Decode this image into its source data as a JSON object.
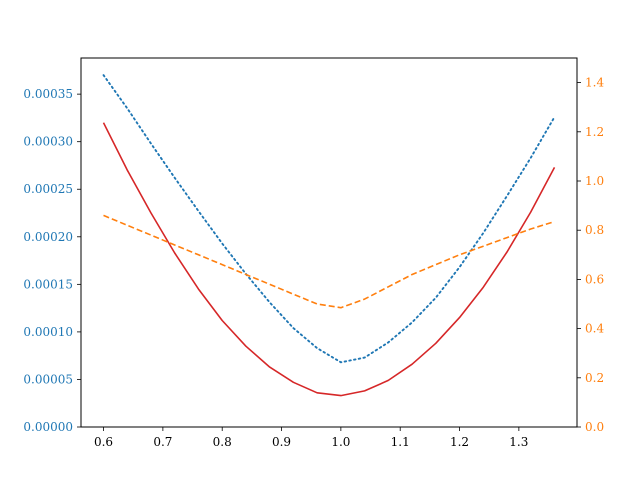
{
  "chart_data": {
    "type": "line",
    "title": "",
    "xlabel": "",
    "ylabel": "",
    "ylabel_right": "",
    "grid": false,
    "xlim": [
      0.562,
      1.398
    ],
    "ylim": [
      0,
      0.000388
    ],
    "ylim_right": [
      0,
      1.5
    ],
    "x_ticks": [
      0.6,
      0.7,
      0.8,
      0.9,
      1.0,
      1.1,
      1.2,
      1.3
    ],
    "x_tick_labels": [
      "0.6",
      "0.7",
      "0.8",
      "0.9",
      "1.0",
      "1.1",
      "1.2",
      "1.3"
    ],
    "y_ticks": [
      0,
      5e-05,
      0.0001,
      0.00015,
      0.0002,
      0.00025,
      0.0003,
      0.00035
    ],
    "y_tick_labels": [
      "0.00000",
      "0.00005",
      "0.00010",
      "0.00015",
      "0.00020",
      "0.00025",
      "0.00030",
      "0.00035"
    ],
    "y_right_ticks": [
      0,
      0.2,
      0.4,
      0.6,
      0.8,
      1.0,
      1.2,
      1.4
    ],
    "y_right_tick_labels": [
      "0.0",
      "0.2",
      "0.4",
      "0.6",
      "0.8",
      "1.0",
      "1.2",
      "1.4"
    ],
    "colors": {
      "left_axis": "#1f77b4",
      "right_axis": "#ff7f0e",
      "axis": "#000000"
    },
    "series": [
      {
        "axis": "left",
        "color": "#1f77b4",
        "style": "dotted",
        "x": [
          0.6,
          0.64,
          0.68,
          0.72,
          0.76,
          0.8,
          0.84,
          0.88,
          0.92,
          0.96,
          1.0,
          1.04,
          1.08,
          1.12,
          1.16,
          1.2,
          1.24,
          1.28,
          1.32,
          1.36
        ],
        "values": [
          0.00037,
          0.000335,
          0.000298,
          0.000262,
          0.000227,
          0.000193,
          0.000161,
          0.000131,
          0.000104,
          8.3e-05,
          6.8e-05,
          7.3e-05,
          8.9e-05,
          0.00011,
          0.000136,
          0.000168,
          0.000204,
          0.000243,
          0.000283,
          0.000326
        ]
      },
      {
        "axis": "left",
        "color": "#d62728",
        "style": "solid",
        "x": [
          0.6,
          0.64,
          0.68,
          0.72,
          0.76,
          0.8,
          0.84,
          0.88,
          0.92,
          0.96,
          1.0,
          1.04,
          1.08,
          1.12,
          1.16,
          1.2,
          1.24,
          1.28,
          1.32,
          1.36
        ],
        "values": [
          0.00032,
          0.00027,
          0.000225,
          0.000183,
          0.000145,
          0.000112,
          8.5e-05,
          6.3e-05,
          4.7e-05,
          3.6e-05,
          3.3e-05,
          3.8e-05,
          4.9e-05,
          6.6e-05,
          8.8e-05,
          0.000115,
          0.000147,
          0.000184,
          0.000226,
          0.000273
        ]
      },
      {
        "axis": "right",
        "color": "#ff7f0e",
        "style": "dashed",
        "x": [
          0.6,
          0.64,
          0.68,
          0.72,
          0.76,
          0.8,
          0.84,
          0.88,
          0.92,
          0.96,
          1.0,
          1.04,
          1.08,
          1.12,
          1.16,
          1.2,
          1.24,
          1.28,
          1.32,
          1.36
        ],
        "values": [
          0.86,
          0.82,
          0.78,
          0.74,
          0.7,
          0.66,
          0.62,
          0.58,
          0.54,
          0.5,
          0.485,
          0.52,
          0.57,
          0.62,
          0.66,
          0.7,
          0.735,
          0.77,
          0.805,
          0.835
        ]
      }
    ]
  }
}
